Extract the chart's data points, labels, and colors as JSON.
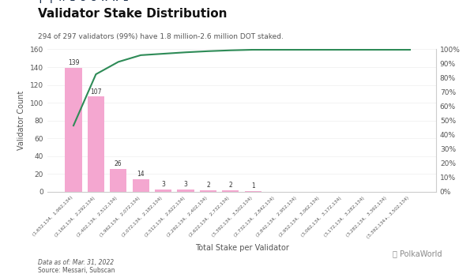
{
  "title": "Validator Stake Distribution",
  "subtitle": "294 of 297 validators (99%) have 1.8 million-2.6 million DOT staked.",
  "xlabel": "Total Stake per Validator",
  "ylabel_left": "Validator Count",
  "ylabel_right": "",
  "bar_values": [
    139,
    107,
    26,
    14,
    3,
    3,
    2,
    2,
    1,
    0,
    0,
    0,
    0,
    0,
    0,
    0
  ],
  "cumulative_pct": [
    46.5,
    82.5,
    91.2,
    95.9,
    96.9,
    97.9,
    98.7,
    99.3,
    99.7,
    99.7,
    99.7,
    99.7,
    99.7,
    99.7,
    99.7,
    99.7
  ],
  "categories": [
    "(1,652,134,  1,962,134)",
    "(2,162,134,  2,292,134)",
    "(2,402,134,  2,512,134)",
    "(1,962,134,  2,072,134)",
    "(2,072,134,  2,182,134)",
    "(2,512,134,  2,622,134)",
    "(2,292,134,  2,402,134)",
    "(2,622,134,  2,732,134)",
    "(3,392,134,  3,502,134)",
    "(2,732,134,  2,842,134)",
    "(2,842,134,  2,952,134)",
    "(2,952,134,  3,062,134)",
    "(3,062,134,  3,172,134)",
    "(3,172,134,  3,282,134)",
    "(3,282,134,  3,392,134)",
    "(3,392,134+, 3,502,134)"
  ],
  "bar_color": "#f4a7d0",
  "line_color": "#2e8b57",
  "bg_color": "#ffffff",
  "logo_text": "MESSARI",
  "data_as_of": "Data as of: Mar. 31, 2022",
  "source": "Source: Messari, Subscan",
  "ylim_left": [
    0,
    160
  ],
  "yticks_left": [
    0,
    20,
    40,
    60,
    80,
    100,
    120,
    140,
    160
  ],
  "yticks_right_labels": [
    "0%",
    "10%",
    "20%",
    "30%",
    "40%",
    "50%",
    "60%",
    "70%",
    "80%",
    "90%",
    "100%"
  ],
  "yticks_right_vals": [
    0,
    10,
    20,
    30,
    40,
    50,
    60,
    70,
    80,
    90,
    100
  ]
}
